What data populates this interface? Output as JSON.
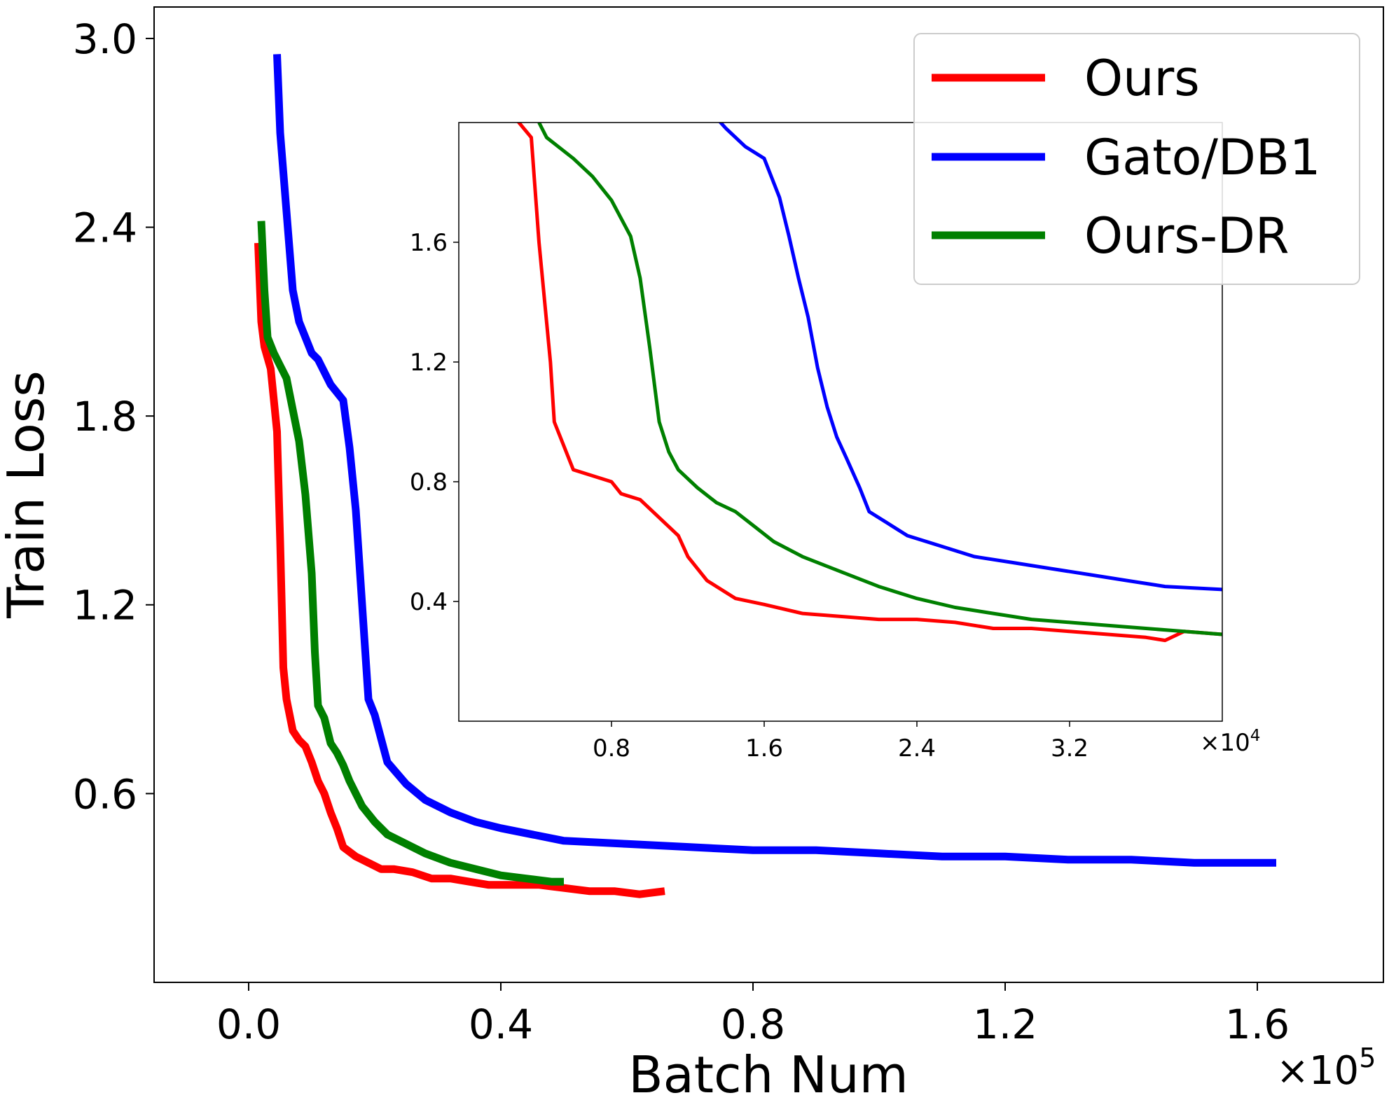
{
  "chart_data": [
    {
      "id": "main",
      "type": "line",
      "title": "",
      "xlabel": "Batch Num",
      "ylabel": "Train Loss",
      "x_multiplier": "×10",
      "x_multiplier_exp": "5",
      "xlim": [
        -0.15,
        1.8
      ],
      "ylim": [
        -0.0,
        3.1
      ],
      "xticks": [
        0.0,
        0.4,
        0.8,
        1.2,
        1.6
      ],
      "xtick_labels": [
        "0.0",
        "0.4",
        "0.8",
        "1.2",
        "1.6"
      ],
      "yticks": [
        0.6,
        1.2,
        1.8,
        2.4,
        3.0
      ],
      "ytick_labels": [
        "0.6",
        "1.2",
        "1.8",
        "2.4",
        "3.0"
      ],
      "grid": false,
      "legend_position": "top-right",
      "series": [
        {
          "name": "Ours",
          "color": "#ff0000",
          "x": [
            0.015,
            0.02,
            0.025,
            0.035,
            0.045,
            0.05,
            0.055,
            0.06,
            0.07,
            0.08,
            0.09,
            0.1,
            0.11,
            0.12,
            0.13,
            0.14,
            0.15,
            0.17,
            0.19,
            0.21,
            0.23,
            0.26,
            0.29,
            0.32,
            0.35,
            0.38,
            0.42,
            0.46,
            0.5,
            0.54,
            0.58,
            0.62,
            0.66
          ],
          "y": [
            2.35,
            2.1,
            2.02,
            1.95,
            1.75,
            1.4,
            1.0,
            0.9,
            0.8,
            0.77,
            0.75,
            0.7,
            0.64,
            0.6,
            0.54,
            0.49,
            0.43,
            0.4,
            0.38,
            0.36,
            0.36,
            0.35,
            0.33,
            0.33,
            0.32,
            0.31,
            0.31,
            0.31,
            0.3,
            0.29,
            0.29,
            0.28,
            0.29
          ]
        },
        {
          "name": "Gato/DB1",
          "color": "#0000ff",
          "x": [
            0.045,
            0.05,
            0.06,
            0.07,
            0.075,
            0.08,
            0.09,
            0.1,
            0.11,
            0.13,
            0.15,
            0.16,
            0.17,
            0.175,
            0.18,
            0.185,
            0.19,
            0.2,
            0.22,
            0.25,
            0.28,
            0.32,
            0.36,
            0.4,
            0.45,
            0.5,
            0.6,
            0.7,
            0.8,
            0.9,
            1.0,
            1.1,
            1.2,
            1.3,
            1.4,
            1.5,
            1.6,
            1.63
          ],
          "y": [
            2.95,
            2.7,
            2.45,
            2.2,
            2.15,
            2.1,
            2.05,
            2.0,
            1.98,
            1.9,
            1.85,
            1.7,
            1.5,
            1.35,
            1.2,
            1.05,
            0.9,
            0.85,
            0.7,
            0.63,
            0.58,
            0.54,
            0.51,
            0.49,
            0.47,
            0.45,
            0.44,
            0.43,
            0.42,
            0.42,
            0.41,
            0.4,
            0.4,
            0.39,
            0.39,
            0.38,
            0.38,
            0.38
          ]
        },
        {
          "name": "Ours-DR",
          "color": "#008000",
          "x": [
            0.02,
            0.025,
            0.03,
            0.04,
            0.05,
            0.06,
            0.07,
            0.08,
            0.09,
            0.1,
            0.105,
            0.11,
            0.12,
            0.13,
            0.14,
            0.15,
            0.16,
            0.18,
            0.2,
            0.22,
            0.25,
            0.28,
            0.32,
            0.36,
            0.4,
            0.44,
            0.48,
            0.5
          ],
          "y": [
            2.42,
            2.2,
            2.05,
            2.0,
            1.96,
            1.92,
            1.82,
            1.72,
            1.55,
            1.3,
            1.05,
            0.88,
            0.84,
            0.76,
            0.73,
            0.69,
            0.64,
            0.56,
            0.51,
            0.47,
            0.44,
            0.41,
            0.38,
            0.36,
            0.34,
            0.33,
            0.32,
            0.32
          ]
        }
      ]
    },
    {
      "id": "inset",
      "type": "line",
      "title": "",
      "xlabel": "",
      "ylabel": "",
      "x_multiplier": "×10",
      "x_multiplier_exp": "4",
      "xlim": [
        0.0,
        4.0
      ],
      "ylim": [
        0.0,
        2.0
      ],
      "xticks": [
        0.8,
        1.6,
        2.4,
        3.2
      ],
      "xtick_labels": [
        "0.8",
        "1.6",
        "2.4",
        "3.2"
      ],
      "yticks": [
        0.4,
        0.8,
        1.2,
        1.6
      ],
      "ytick_labels": [
        "0.4",
        "0.8",
        "1.2",
        "1.6"
      ],
      "grid": false,
      "series": [
        {
          "name": "Ours",
          "color": "#ff0000",
          "x": [
            0.25,
            0.38,
            0.42,
            0.48,
            0.5,
            0.55,
            0.6,
            0.8,
            0.85,
            0.95,
            1.15,
            1.2,
            1.3,
            1.45,
            1.6,
            1.8,
            2.0,
            2.2,
            2.4,
            2.6,
            2.8,
            3.0,
            3.2,
            3.4,
            3.6,
            3.7,
            3.8,
            4.0
          ],
          "y": [
            2.05,
            1.95,
            1.6,
            1.2,
            1.0,
            0.92,
            0.84,
            0.8,
            0.76,
            0.74,
            0.62,
            0.55,
            0.47,
            0.41,
            0.39,
            0.36,
            0.35,
            0.34,
            0.34,
            0.33,
            0.31,
            0.31,
            0.3,
            0.29,
            0.28,
            0.27,
            0.3,
            0.29
          ]
        },
        {
          "name": "Gato/DB1",
          "color": "#0000ff",
          "x": [
            1.3,
            1.4,
            1.5,
            1.6,
            1.68,
            1.73,
            1.78,
            1.83,
            1.88,
            1.93,
            1.98,
            2.03,
            2.1,
            2.15,
            2.25,
            2.35,
            2.5,
            2.7,
            2.9,
            3.1,
            3.3,
            3.5,
            3.7,
            4.0
          ],
          "y": [
            2.05,
            1.98,
            1.92,
            1.88,
            1.75,
            1.62,
            1.48,
            1.35,
            1.18,
            1.05,
            0.95,
            0.88,
            0.78,
            0.7,
            0.66,
            0.62,
            0.59,
            0.55,
            0.53,
            0.51,
            0.49,
            0.47,
            0.45,
            0.44
          ]
        },
        {
          "name": "Ours-DR",
          "color": "#008000",
          "x": [
            0.42,
            0.46,
            0.52,
            0.6,
            0.7,
            0.8,
            0.9,
            0.95,
            1.0,
            1.05,
            1.1,
            1.15,
            1.25,
            1.35,
            1.45,
            1.55,
            1.65,
            1.8,
            2.0,
            2.2,
            2.4,
            2.6,
            2.8,
            3.0,
            3.2,
            3.4,
            3.6,
            3.8,
            4.0
          ],
          "y": [
            2.0,
            1.95,
            1.92,
            1.88,
            1.82,
            1.74,
            1.62,
            1.48,
            1.25,
            1.0,
            0.9,
            0.84,
            0.78,
            0.73,
            0.7,
            0.65,
            0.6,
            0.55,
            0.5,
            0.45,
            0.41,
            0.38,
            0.36,
            0.34,
            0.33,
            0.32,
            0.31,
            0.3,
            0.29
          ]
        }
      ]
    }
  ]
}
